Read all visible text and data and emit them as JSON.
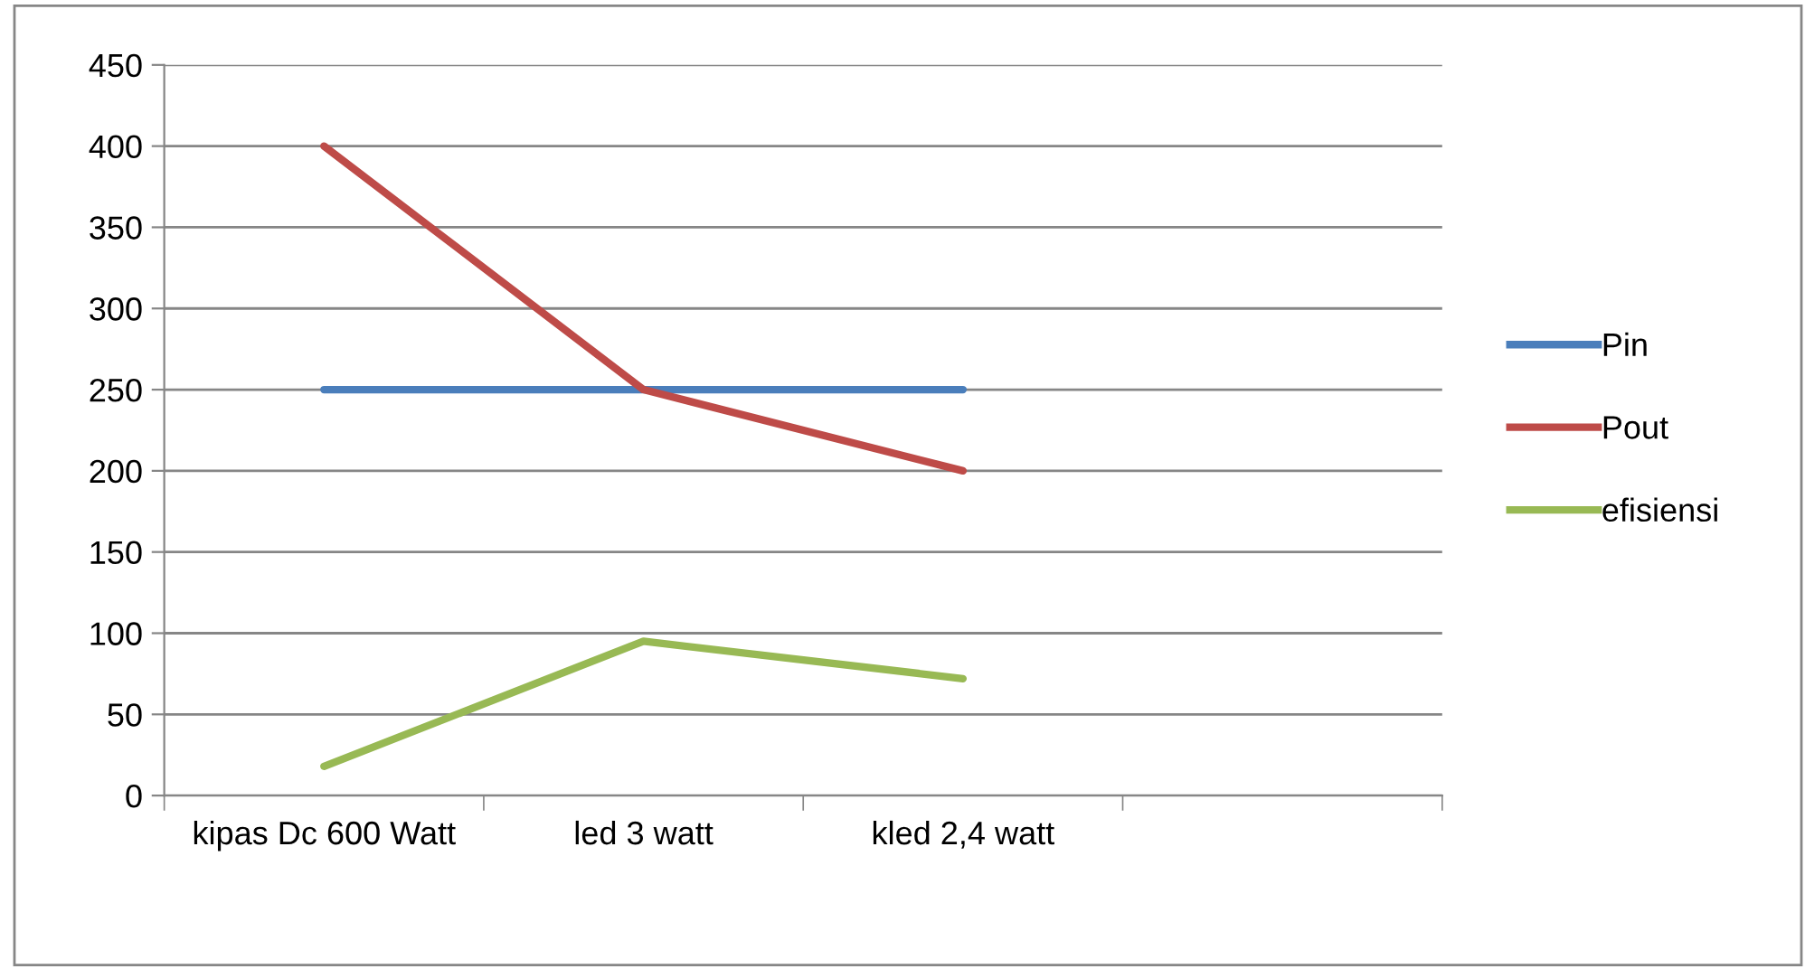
{
  "chart_data": {
    "type": "line",
    "categories": [
      "kipas Dc 600 Watt",
      "led 3 watt",
      "kled 2,4 watt",
      null
    ],
    "series": [
      {
        "name": "Pin",
        "color": "#4a7ebb",
        "values": [
          250,
          250,
          250,
          null
        ]
      },
      {
        "name": "Pout",
        "color": "#be4b48",
        "values": [
          400,
          250,
          200,
          null
        ]
      },
      {
        "name": "efisiensi",
        "color": "#98b954",
        "values": [
          18,
          95,
          72,
          null
        ]
      }
    ],
    "ylim": [
      0,
      450
    ],
    "yticks": [
      0,
      50,
      100,
      150,
      200,
      250,
      300,
      350,
      400,
      450
    ],
    "grid": "y",
    "legend": "right",
    "marker": "none",
    "line_style": "solid"
  }
}
